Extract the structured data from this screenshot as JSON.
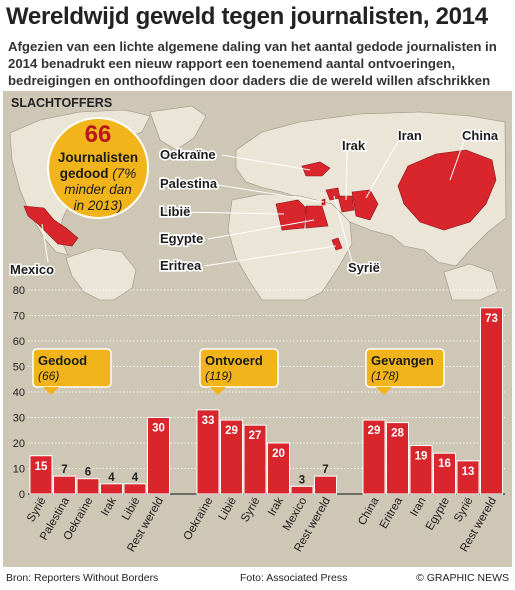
{
  "title": "Wereldwijd geweld tegen journalisten, 2014",
  "subtitle": "Afgezien van een lichte algemene daling van het aantal gedode journalisten in 2014 benadrukt een nieuw rapport een toenemend aantal ontvoeringen, bedreigingen en onthoofdingen door daders die de wereld willen afschrikken",
  "map": {
    "section_label": "SLACHTOFFERS",
    "badge": {
      "number": "66",
      "line1": "Journalisten",
      "line2": "gedood",
      "note": "(7% minder dan in 2013)"
    },
    "country_labels": [
      "Oekraïne",
      "Palestina",
      "Libië",
      "Egypte",
      "Eritrea",
      "Irak",
      "Iran",
      "China",
      "Syrië",
      "Mexico"
    ],
    "highlight_color": "#d8262c"
  },
  "footer": {
    "source": "Bron: Reporters Without Borders",
    "photo": "Foto: Associated Press",
    "credit": "© GRAPHIC NEWS"
  },
  "chart_data": {
    "type": "bar",
    "ylim": [
      0,
      80
    ],
    "yticks": [
      0,
      10,
      20,
      30,
      40,
      50,
      60,
      70,
      80
    ],
    "bar_color": "#d8262c",
    "groups": [
      {
        "name": "Gedood",
        "total": "(66)",
        "categories": [
          "Syrië",
          "Palestina",
          "Oekraïne",
          "Irak",
          "Libië",
          "Rest wereld"
        ],
        "values": [
          15,
          7,
          6,
          4,
          4,
          30
        ]
      },
      {
        "name": "Ontvoerd",
        "total": "(119)",
        "categories": [
          "Oekraïne",
          "Libië",
          "Syrië",
          "Irak",
          "Mexico",
          "Rest wereld"
        ],
        "values": [
          33,
          29,
          27,
          20,
          3,
          7
        ]
      },
      {
        "name": "Gevangen",
        "total": "(178)",
        "categories": [
          "China",
          "Eritrea",
          "Iran",
          "Egypte",
          "Syrië",
          "Rest wereld"
        ],
        "values": [
          29,
          28,
          19,
          16,
          13,
          73
        ]
      }
    ]
  }
}
